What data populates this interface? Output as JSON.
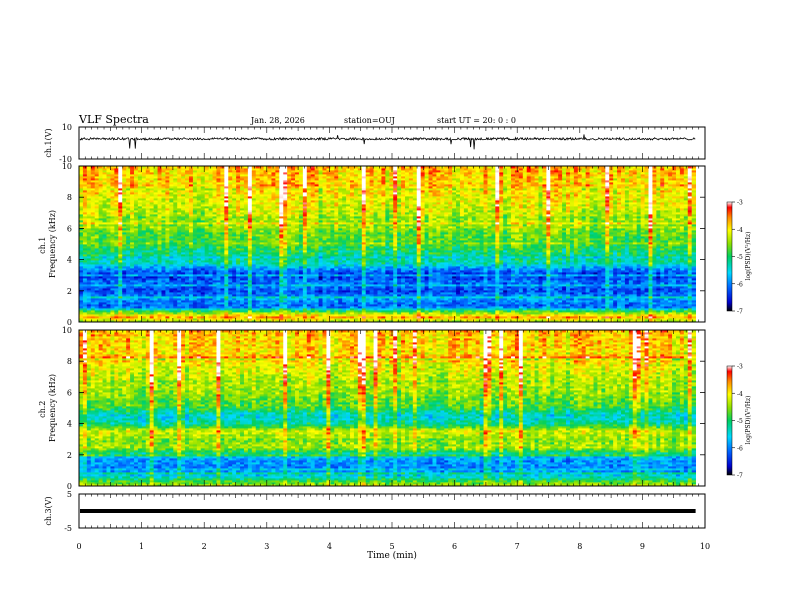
{
  "header": {
    "title": "VLF Spectra",
    "date": "Jan. 28, 2026",
    "station": "station=OUJ",
    "start": "start  UT =   20: 0  : 0"
  },
  "chart_data": [
    {
      "type": "line",
      "panel": "ch1-waveform",
      "ylabel": "ch.1(V)",
      "ylim": [
        -10,
        10
      ],
      "yticks": [
        {
          "v": 10,
          "label": "10"
        },
        {
          "v": -10,
          "label": "-10"
        }
      ],
      "trace_level": 2.6,
      "noise_amplitude": 0.7,
      "color": "#000000"
    },
    {
      "type": "heatmap",
      "panel": "ch1-spectrogram",
      "ylabel": "ch.1\nFrequency (kHz)",
      "ylim": [
        0,
        10
      ],
      "yticks": [
        "0",
        "2",
        "4",
        "6",
        "8",
        "10"
      ],
      "colorbar": {
        "label": "log(PSD)(V²/Hz)",
        "range": [
          -7,
          -3
        ],
        "ticks": [
          "-3",
          "-4",
          "-5",
          "-6",
          "-7"
        ]
      },
      "frequency_profile_log_psd": [
        {
          "f": 0.0,
          "v": -4.6
        },
        {
          "f": 0.3,
          "v": -3.6
        },
        {
          "f": 0.7,
          "v": -4.8
        },
        {
          "f": 1.0,
          "v": -6.2
        },
        {
          "f": 1.5,
          "v": -5.9
        },
        {
          "f": 2.0,
          "v": -6.3
        },
        {
          "f": 2.5,
          "v": -6.0
        },
        {
          "f": 3.0,
          "v": -6.4
        },
        {
          "f": 3.4,
          "v": -6.0
        },
        {
          "f": 3.8,
          "v": -5.3
        },
        {
          "f": 4.5,
          "v": -5.1
        },
        {
          "f": 5.0,
          "v": -4.8
        },
        {
          "f": 6.0,
          "v": -4.6
        },
        {
          "f": 7.0,
          "v": -4.3
        },
        {
          "f": 8.0,
          "v": -4.1
        },
        {
          "f": 9.0,
          "v": -3.9
        },
        {
          "f": 10.0,
          "v": -3.8
        }
      ]
    },
    {
      "type": "heatmap",
      "panel": "ch2-spectrogram",
      "ylabel": "ch.2\nFrequency (kHz)",
      "ylim": [
        0,
        10
      ],
      "yticks": [
        "0",
        "2",
        "4",
        "6",
        "8",
        "10"
      ],
      "colorbar": {
        "label": "log(PSD)(V²/Hz)",
        "range": [
          -7,
          -3
        ],
        "ticks": [
          "-3",
          "-4",
          "-5",
          "-6",
          "-7"
        ]
      },
      "frequency_profile_log_psd": [
        {
          "f": 0.0,
          "v": -4.3
        },
        {
          "f": 0.3,
          "v": -4.8
        },
        {
          "f": 0.8,
          "v": -5.8
        },
        {
          "f": 1.2,
          "v": -6.0
        },
        {
          "f": 1.8,
          "v": -5.8
        },
        {
          "f": 2.5,
          "v": -4.4
        },
        {
          "f": 3.0,
          "v": -4.6
        },
        {
          "f": 3.5,
          "v": -4.2
        },
        {
          "f": 4.0,
          "v": -5.2
        },
        {
          "f": 4.5,
          "v": -5.5
        },
        {
          "f": 5.0,
          "v": -4.9
        },
        {
          "f": 6.0,
          "v": -4.5
        },
        {
          "f": 7.0,
          "v": -4.3
        },
        {
          "f": 8.0,
          "v": -4.1
        },
        {
          "f": 9.0,
          "v": -3.9
        },
        {
          "f": 10.0,
          "v": -3.8
        }
      ]
    },
    {
      "type": "line",
      "panel": "ch3-waveform",
      "ylabel": "ch.3(V)",
      "ylim": [
        -5,
        5
      ],
      "yticks": [
        {
          "v": 5,
          "label": "5"
        },
        {
          "v": -5,
          "label": "-5"
        }
      ],
      "trace_level": 0.0,
      "color": "#000000"
    }
  ],
  "x_axis": {
    "label": "Time (min)",
    "range": [
      0,
      10
    ],
    "data_end": 9.85,
    "ticks": [
      "0",
      "1",
      "2",
      "3",
      "4",
      "5",
      "6",
      "7",
      "8",
      "9",
      "10"
    ]
  }
}
